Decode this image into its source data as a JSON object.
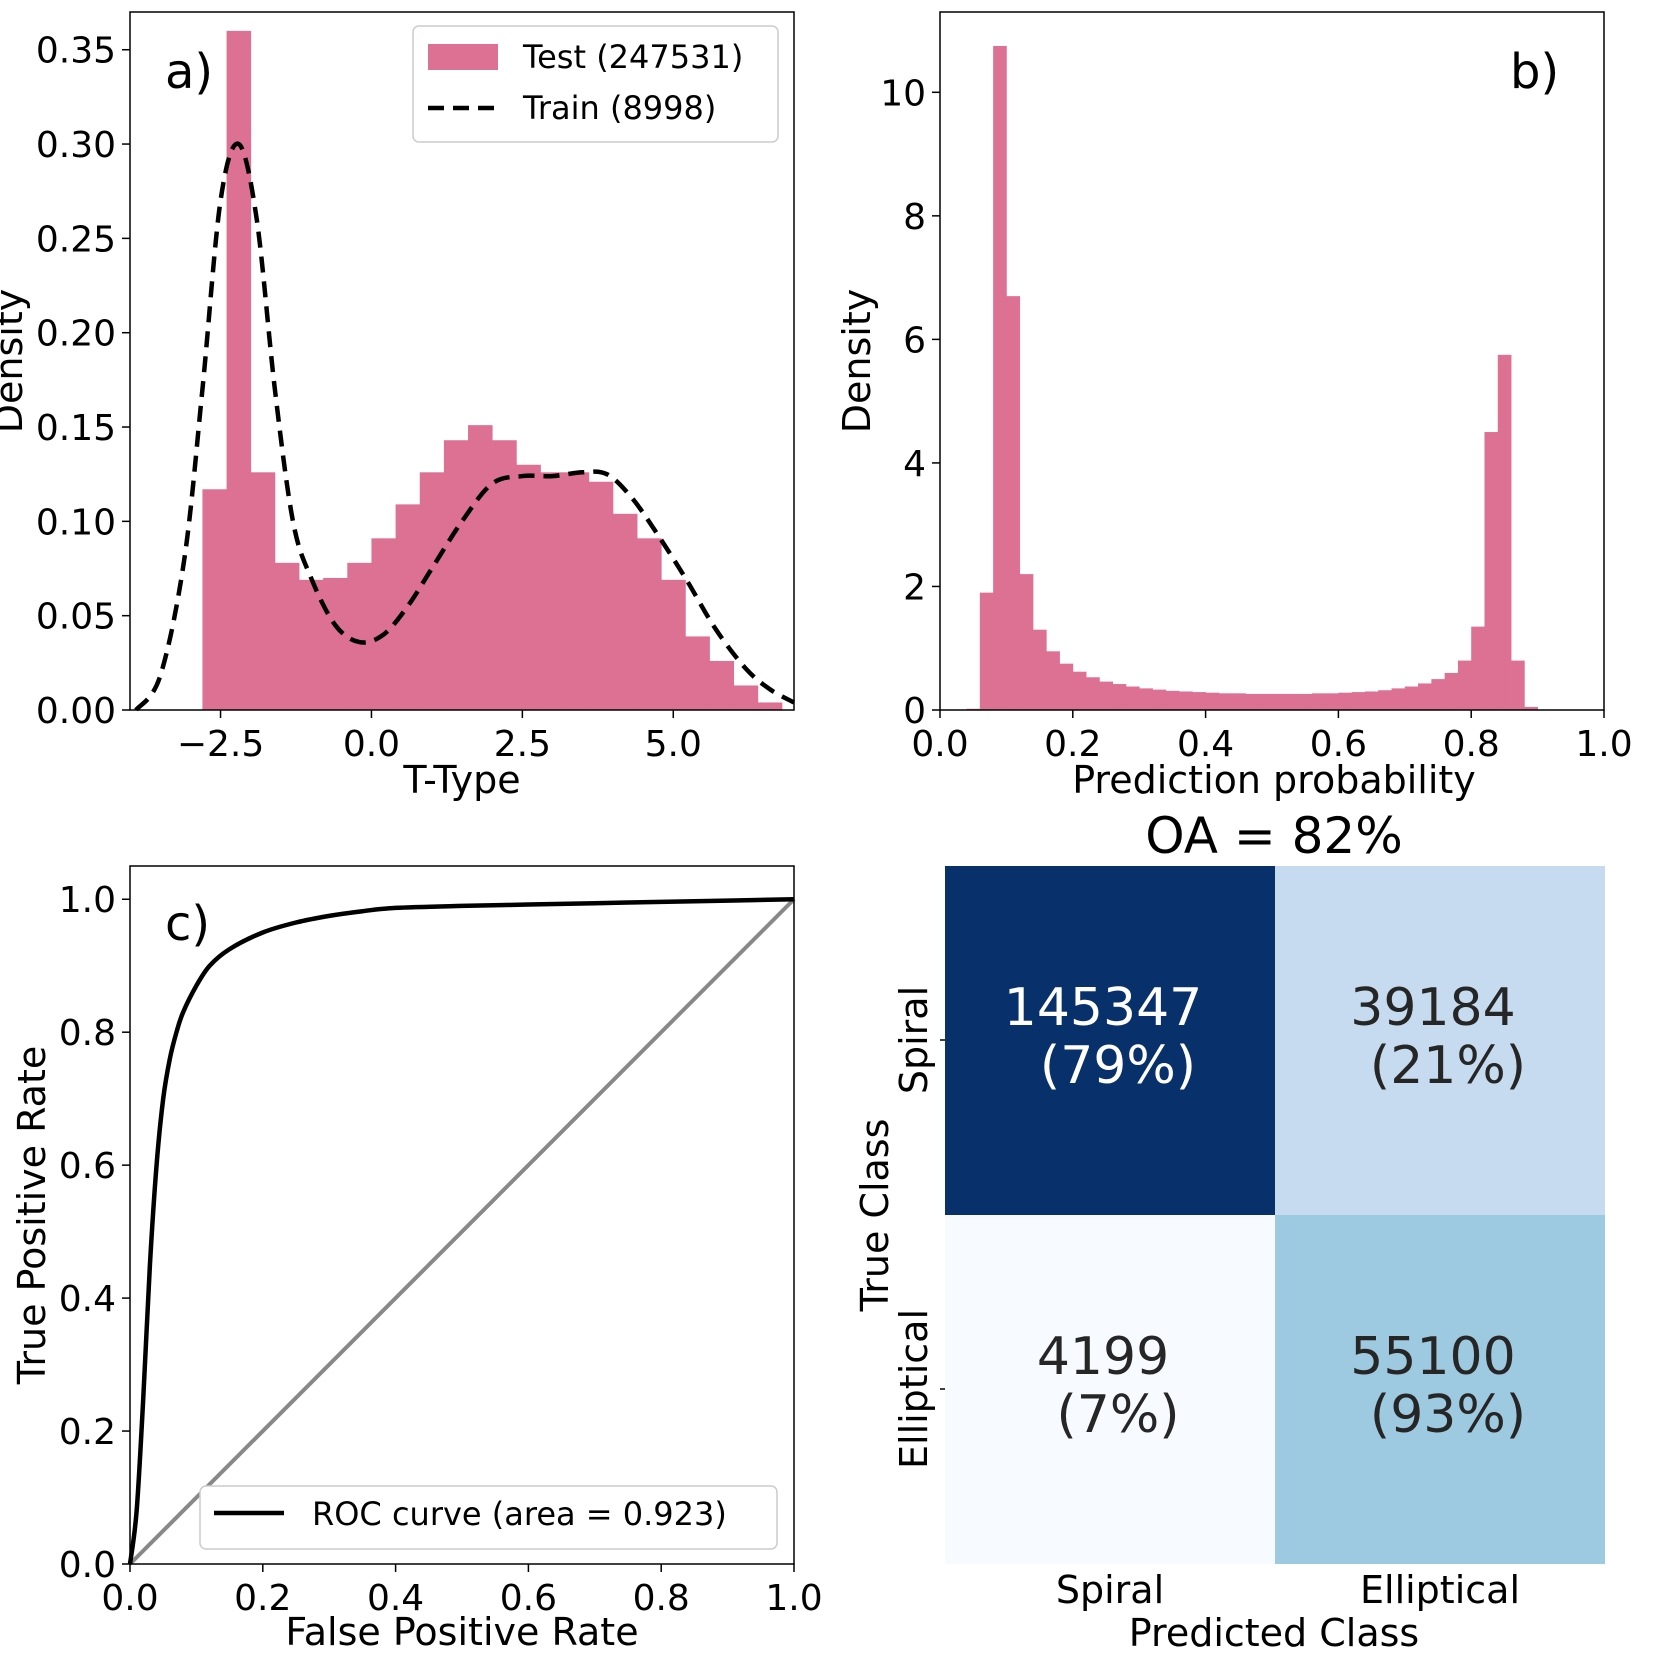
{
  "colors": {
    "hist": "#dc7193",
    "train": "#000000",
    "roc": "#000000",
    "diag": "#888888",
    "cm_dark": "#08306b",
    "cm_light": "#c6dbef",
    "cm_lightest": "#f7fbff",
    "cm_mid": "#9ecae1"
  },
  "chart_data": [
    {
      "id": "a",
      "type": "bar",
      "panel_label": "a)",
      "xlabel": "T-Type",
      "ylabel": "Density",
      "xlim": [
        -4.0,
        7.0
      ],
      "ylim": [
        0.0,
        0.37
      ],
      "xticks": [
        "-2.5",
        "0.0",
        "2.5",
        "5.0"
      ],
      "yticks": [
        "0.00",
        "0.05",
        "0.10",
        "0.15",
        "0.20",
        "0.25",
        "0.30",
        "0.35"
      ],
      "bin_start": -2.8,
      "bin_width": 0.4,
      "values": [
        0.117,
        0.36,
        0.126,
        0.078,
        0.069,
        0.07,
        0.078,
        0.091,
        0.109,
        0.126,
        0.143,
        0.151,
        0.143,
        0.13,
        0.126,
        0.126,
        0.121,
        0.104,
        0.091,
        0.069,
        0.039,
        0.026,
        0.013,
        0.004
      ],
      "legend": [
        "Test (247531)",
        "Train (8998)"
      ],
      "train_curve": {
        "name": "Train (8998)",
        "x": [
          -3.9,
          -3.5,
          -3.1,
          -2.8,
          -2.5,
          -2.2,
          -1.9,
          -1.6,
          -1.3,
          -1.0,
          -0.6,
          -0.2,
          0.2,
          0.6,
          1.0,
          1.5,
          2.0,
          2.5,
          3.0,
          3.5,
          3.9,
          4.3,
          4.7,
          5.2,
          5.7,
          6.2,
          6.6,
          7.0
        ],
        "y": [
          0.0,
          0.018,
          0.08,
          0.17,
          0.27,
          0.3,
          0.26,
          0.17,
          0.1,
          0.07,
          0.045,
          0.036,
          0.04,
          0.055,
          0.075,
          0.1,
          0.12,
          0.124,
          0.124,
          0.126,
          0.125,
          0.113,
          0.095,
          0.07,
          0.043,
          0.022,
          0.011,
          0.004
        ]
      }
    },
    {
      "id": "b",
      "type": "bar",
      "panel_label": "b)",
      "xlabel": "Prediction probability",
      "ylabel": "Density",
      "xlim": [
        0.0,
        1.0
      ],
      "ylim": [
        0.0,
        11.3
      ],
      "xticks": [
        "0.0",
        "0.2",
        "0.4",
        "0.6",
        "0.8",
        "1.0"
      ],
      "yticks": [
        "0",
        "2",
        "4",
        "6",
        "8",
        "10"
      ],
      "bin_start": 0.04,
      "bin_width": 0.02,
      "values": [
        0.02,
        1.9,
        10.75,
        6.7,
        2.2,
        1.3,
        0.95,
        0.75,
        0.62,
        0.53,
        0.46,
        0.42,
        0.38,
        0.35,
        0.33,
        0.31,
        0.3,
        0.29,
        0.28,
        0.27,
        0.27,
        0.26,
        0.26,
        0.26,
        0.26,
        0.26,
        0.27,
        0.27,
        0.28,
        0.29,
        0.3,
        0.32,
        0.35,
        0.38,
        0.43,
        0.5,
        0.6,
        0.8,
        1.35,
        4.5,
        5.75,
        0.8,
        0.05
      ]
    },
    {
      "id": "c",
      "type": "line",
      "panel_label": "c)",
      "xlabel": "False Positive Rate",
      "ylabel": "True Positive Rate",
      "xlim": [
        0.0,
        1.0
      ],
      "ylim": [
        0.0,
        1.05
      ],
      "xticks": [
        "0.0",
        "0.2",
        "0.4",
        "0.6",
        "0.8",
        "1.0"
      ],
      "yticks": [
        "0.0",
        "0.2",
        "0.4",
        "0.6",
        "0.8",
        "1.0"
      ],
      "legend": [
        "ROC curve (area = 0.923)"
      ],
      "series": [
        {
          "name": "ROC curve (area = 0.923)",
          "x": [
            0.0,
            0.01,
            0.02,
            0.03,
            0.04,
            0.05,
            0.06,
            0.07,
            0.08,
            0.1,
            0.12,
            0.15,
            0.2,
            0.25,
            0.3,
            0.35,
            0.4,
            0.5,
            0.6,
            0.7,
            0.8,
            0.9,
            1.0
          ],
          "y": [
            0.0,
            0.08,
            0.25,
            0.45,
            0.6,
            0.7,
            0.76,
            0.8,
            0.83,
            0.87,
            0.9,
            0.925,
            0.95,
            0.965,
            0.975,
            0.982,
            0.987,
            0.99,
            0.992,
            0.994,
            0.996,
            0.998,
            1.0
          ]
        },
        {
          "name": "chance",
          "x": [
            0.0,
            1.0
          ],
          "y": [
            0.0,
            1.0
          ]
        }
      ]
    },
    {
      "id": "d",
      "type": "heatmap",
      "title": "OA = 82%",
      "xlabel": "Predicted Class",
      "ylabel": "True Class",
      "x_categories": [
        "Spiral",
        "Elliptical"
      ],
      "y_categories": [
        "Spiral",
        "Elliptical"
      ],
      "cells": [
        [
          {
            "count": "145347",
            "pct": "(79%)",
            "value": 0.79
          },
          {
            "count": "39184",
            "pct": "(21%)",
            "value": 0.21
          }
        ],
        [
          {
            "count": "4199",
            "pct": "(7%)",
            "value": 0.07
          },
          {
            "count": "55100",
            "pct": "(93%)",
            "value": 0.93
          }
        ]
      ]
    }
  ]
}
